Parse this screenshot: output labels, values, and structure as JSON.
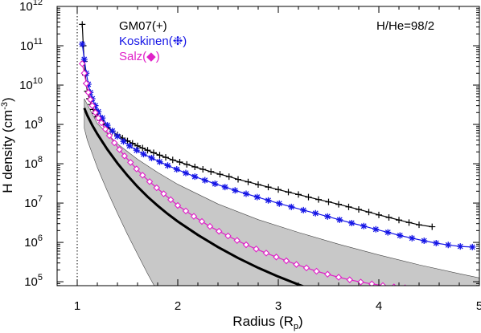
{
  "chart_data": {
    "type": "line",
    "xlabel": "Radius (R",
    "xlabel_sub": "p",
    "xlabel_end": ")",
    "ylabel": "H density (cm",
    "ylabel_sup": "-3",
    "ylabel_end": ")",
    "annotation": "H/He=98/2",
    "scale": {
      "x": "linear",
      "y": "log"
    },
    "xlim": [
      0.8,
      5.0
    ],
    "ylim_log10": [
      4.9,
      12.0
    ],
    "x_ticks": [
      1,
      2,
      3,
      4,
      5
    ],
    "x_tick_labels": [
      "1",
      "2",
      "3",
      "4",
      "5"
    ],
    "y_ticks_log10": [
      5,
      6,
      7,
      8,
      9,
      10,
      11,
      12
    ],
    "y_tick_labels": [
      {
        "base": "10",
        "exp": "5"
      },
      {
        "base": "10",
        "exp": "6"
      },
      {
        "base": "10",
        "exp": "7"
      },
      {
        "base": "10",
        "exp": "8"
      },
      {
        "base": "10",
        "exp": "9"
      },
      {
        "base": "10",
        "exp": "10"
      },
      {
        "base": "10",
        "exp": "11"
      },
      {
        "base": "10",
        "exp": "12"
      }
    ],
    "reference_line_x": 1.0,
    "series": [
      {
        "name": "GM07(+)",
        "color": "#000000",
        "marker": "plus",
        "x": [
          1.05,
          1.06,
          1.07,
          1.08,
          1.09,
          1.1,
          1.12,
          1.14,
          1.16,
          1.18,
          1.2,
          1.23,
          1.26,
          1.3,
          1.35,
          1.4,
          1.45,
          1.5,
          1.55,
          1.6,
          1.65,
          1.7,
          1.76,
          1.82,
          1.88,
          1.95,
          2.02,
          2.09,
          2.17,
          2.25,
          2.33,
          2.42,
          2.51,
          2.6,
          2.7,
          2.8,
          2.9,
          3.0,
          3.1,
          3.2,
          3.3,
          3.4,
          3.5,
          3.6,
          3.7,
          3.8,
          3.9,
          4.0,
          4.1,
          4.2,
          4.3,
          4.4,
          4.53
        ],
        "y": [
          350000000000.0,
          100000000000.0,
          40000000000.0,
          18000000000.0,
          11000000000.0,
          7000000000.0,
          4500000000.0,
          3200000000.0,
          2400000000.0,
          1900000000.0,
          1550000000.0,
          1250000000.0,
          1050000000.0,
          850000000.0,
          670000000.0,
          540000000.0,
          450000000.0,
          380000000.0,
          330000000.0,
          285000000.0,
          250000000.0,
          220000000.0,
          190000000.0,
          165000000.0,
          145000000.0,
          125000000.0,
          110000000.0,
          96000000.0,
          83000000.0,
          72000000.0,
          63000000.0,
          54000000.0,
          47000000.0,
          40000000.0,
          34500000.0,
          29500000.0,
          25500000.0,
          22000000.0,
          19000000.0,
          16500000.0,
          14200000.0,
          12300000.0,
          10700000.0,
          9300000.0,
          8000000.0,
          6900000.0,
          5900000.0,
          5000000.0,
          4300000.0,
          3700000.0,
          3200000.0,
          2800000.0,
          2500000.0
        ]
      },
      {
        "name": "Koskinen(❉)",
        "color": "#1515e6",
        "marker": "asterisk",
        "x": [
          1.05,
          1.07,
          1.09,
          1.11,
          1.13,
          1.15,
          1.18,
          1.21,
          1.25,
          1.3,
          1.35,
          1.4,
          1.46,
          1.52,
          1.59,
          1.66,
          1.74,
          1.82,
          1.9,
          1.99,
          2.08,
          2.17,
          2.27,
          2.37,
          2.47,
          2.57,
          2.68,
          2.79,
          2.9,
          3.01,
          3.13,
          3.25,
          3.37,
          3.49,
          3.61,
          3.73,
          3.85,
          3.97,
          4.09,
          4.21,
          4.33,
          4.45,
          4.57,
          4.69,
          4.81,
          4.93
        ],
        "y": [
          110000000000.0,
          45000000000.0,
          20000000000.0,
          10500000000.0,
          6500000000.0,
          4500000000.0,
          3000000000.0,
          2100000000.0,
          1450000000.0,
          950000000.0,
          680000000.0,
          500000000.0,
          370000000.0,
          285000000.0,
          220000000.0,
          175000000.0,
          140000000.0,
          112000000.0,
          90000000.0,
          72000000.0,
          58000000.0,
          47000000.0,
          38000000.0,
          31000000.0,
          25500000.0,
          21000000.0,
          17200000.0,
          14200000.0,
          11700000.0,
          9700000.0,
          8000000.0,
          6600000.0,
          5500000.0,
          4550000.0,
          3750000.0,
          3100000.0,
          2600000.0,
          2150000.0,
          1800000.0,
          1500000.0,
          1280000.0,
          1100000.0,
          960000.0,
          860000.0,
          790000.0,
          760000.0
        ]
      },
      {
        "name": "Salz(◆)",
        "color": "#e020c8",
        "marker": "diamond",
        "x": [
          1.05,
          1.07,
          1.09,
          1.11,
          1.13,
          1.15,
          1.18,
          1.21,
          1.24,
          1.28,
          1.32,
          1.37,
          1.42,
          1.47,
          1.53,
          1.59,
          1.65,
          1.72,
          1.79,
          1.86,
          1.93,
          2.0,
          2.08,
          2.16,
          2.24,
          2.32,
          2.41,
          2.5,
          2.59,
          2.68,
          2.78,
          2.88,
          2.98,
          3.08,
          3.18,
          3.28,
          3.38,
          3.49,
          3.6,
          3.71,
          3.82,
          3.93,
          4.04,
          4.15,
          4.26,
          4.37
        ],
        "y": [
          35000000000.0,
          20000000000.0,
          11000000000.0,
          6500000000.0,
          4300000000.0,
          3000000000.0,
          2000000000.0,
          1450000000.0,
          1100000000.0,
          760000000.0,
          520000000.0,
          340000000.0,
          230000000.0,
          158000000.0,
          108000000.0,
          74000000.0,
          51000000.0,
          35000000.0,
          24500000.0,
          17200000.0,
          12200000.0,
          8700000.0,
          6300000.0,
          4600000.0,
          3400000.0,
          2550000.0,
          1920000.0,
          1460000.0,
          1120000.0,
          870000.0,
          680000.0,
          535000.0,
          425000.0,
          340000.0,
          275000.0,
          225000.0,
          185000.0,
          155000.0,
          130000.0,
          112000.0,
          98000.0,
          88000.0,
          80000.0,
          74000.0,
          70000.0,
          67000.0
        ]
      },
      {
        "name": "",
        "color": "#000000",
        "marker": "none",
        "line_width": 3,
        "x": [
          1.07,
          1.1,
          1.15,
          1.2,
          1.3,
          1.4,
          1.5,
          1.6,
          1.7,
          1.8,
          1.9,
          2.0,
          2.2,
          2.4,
          2.6,
          2.8,
          3.0,
          3.2,
          3.4,
          3.64
        ],
        "y": [
          2600000000.0,
          1700000000.0,
          950000000.0,
          570000000.0,
          230000000.0,
          103000000.0,
          50000000.0,
          26000000.0,
          14500000.0,
          8600000.0,
          5300000.0,
          3400000.0,
          1550000.0,
          760000.0,
          400000.0,
          225000.0,
          135000.0,
          85000.0,
          55000.0,
          35000.0
        ]
      }
    ],
    "band": {
      "color": "#c8c8c8",
      "x_upper": [
        1.07,
        1.2,
        1.4,
        1.6,
        1.8,
        2.0,
        2.4,
        2.8,
        3.2,
        3.6,
        4.0,
        4.4,
        4.8,
        5.0
      ],
      "y_upper": [
        4500000000.0,
        1050000000.0,
        320000000.0,
        130000000.0,
        60000000.0,
        30000000.0,
        9500000.0,
        3800000.0,
        1800000.0,
        900000.0,
        480000.0,
        270000.0,
        160000.0,
        125000.0
      ],
      "x_lower": [
        1.07,
        1.1,
        1.2,
        1.3,
        1.4,
        1.5,
        1.6,
        1.7,
        1.8,
        1.85
      ],
      "y_lower": [
        800000000.0,
        400000000.0,
        80000000.0,
        20000000.0,
        5500000.0,
        1600000.0,
        500000.0,
        160000.0,
        55000.0,
        30000.0
      ]
    }
  }
}
